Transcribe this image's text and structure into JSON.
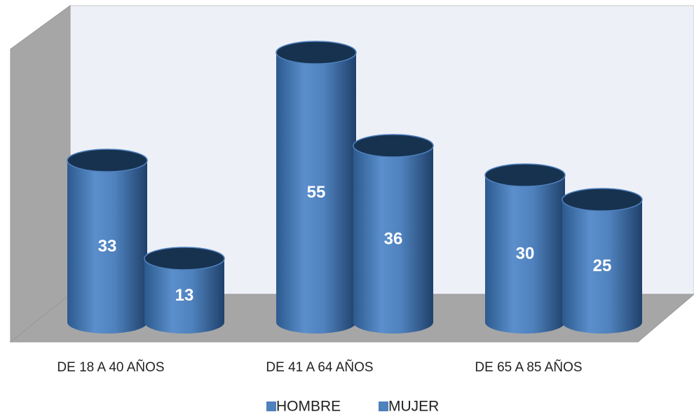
{
  "chart_data": {
    "type": "cylinder",
    "categories": [
      "DE 18 A 40 AÑOS",
      "DE 41 A 64 AÑOS",
      "DE 65 A 85 AÑOS"
    ],
    "series": [
      {
        "name": "HOMBRE",
        "color": "#4f81bd",
        "values": [
          33,
          55,
          30
        ]
      },
      {
        "name": "MUJER",
        "color": "#4f81bd",
        "values": [
          13,
          36,
          25
        ]
      }
    ],
    "legend": "bottom"
  }
}
